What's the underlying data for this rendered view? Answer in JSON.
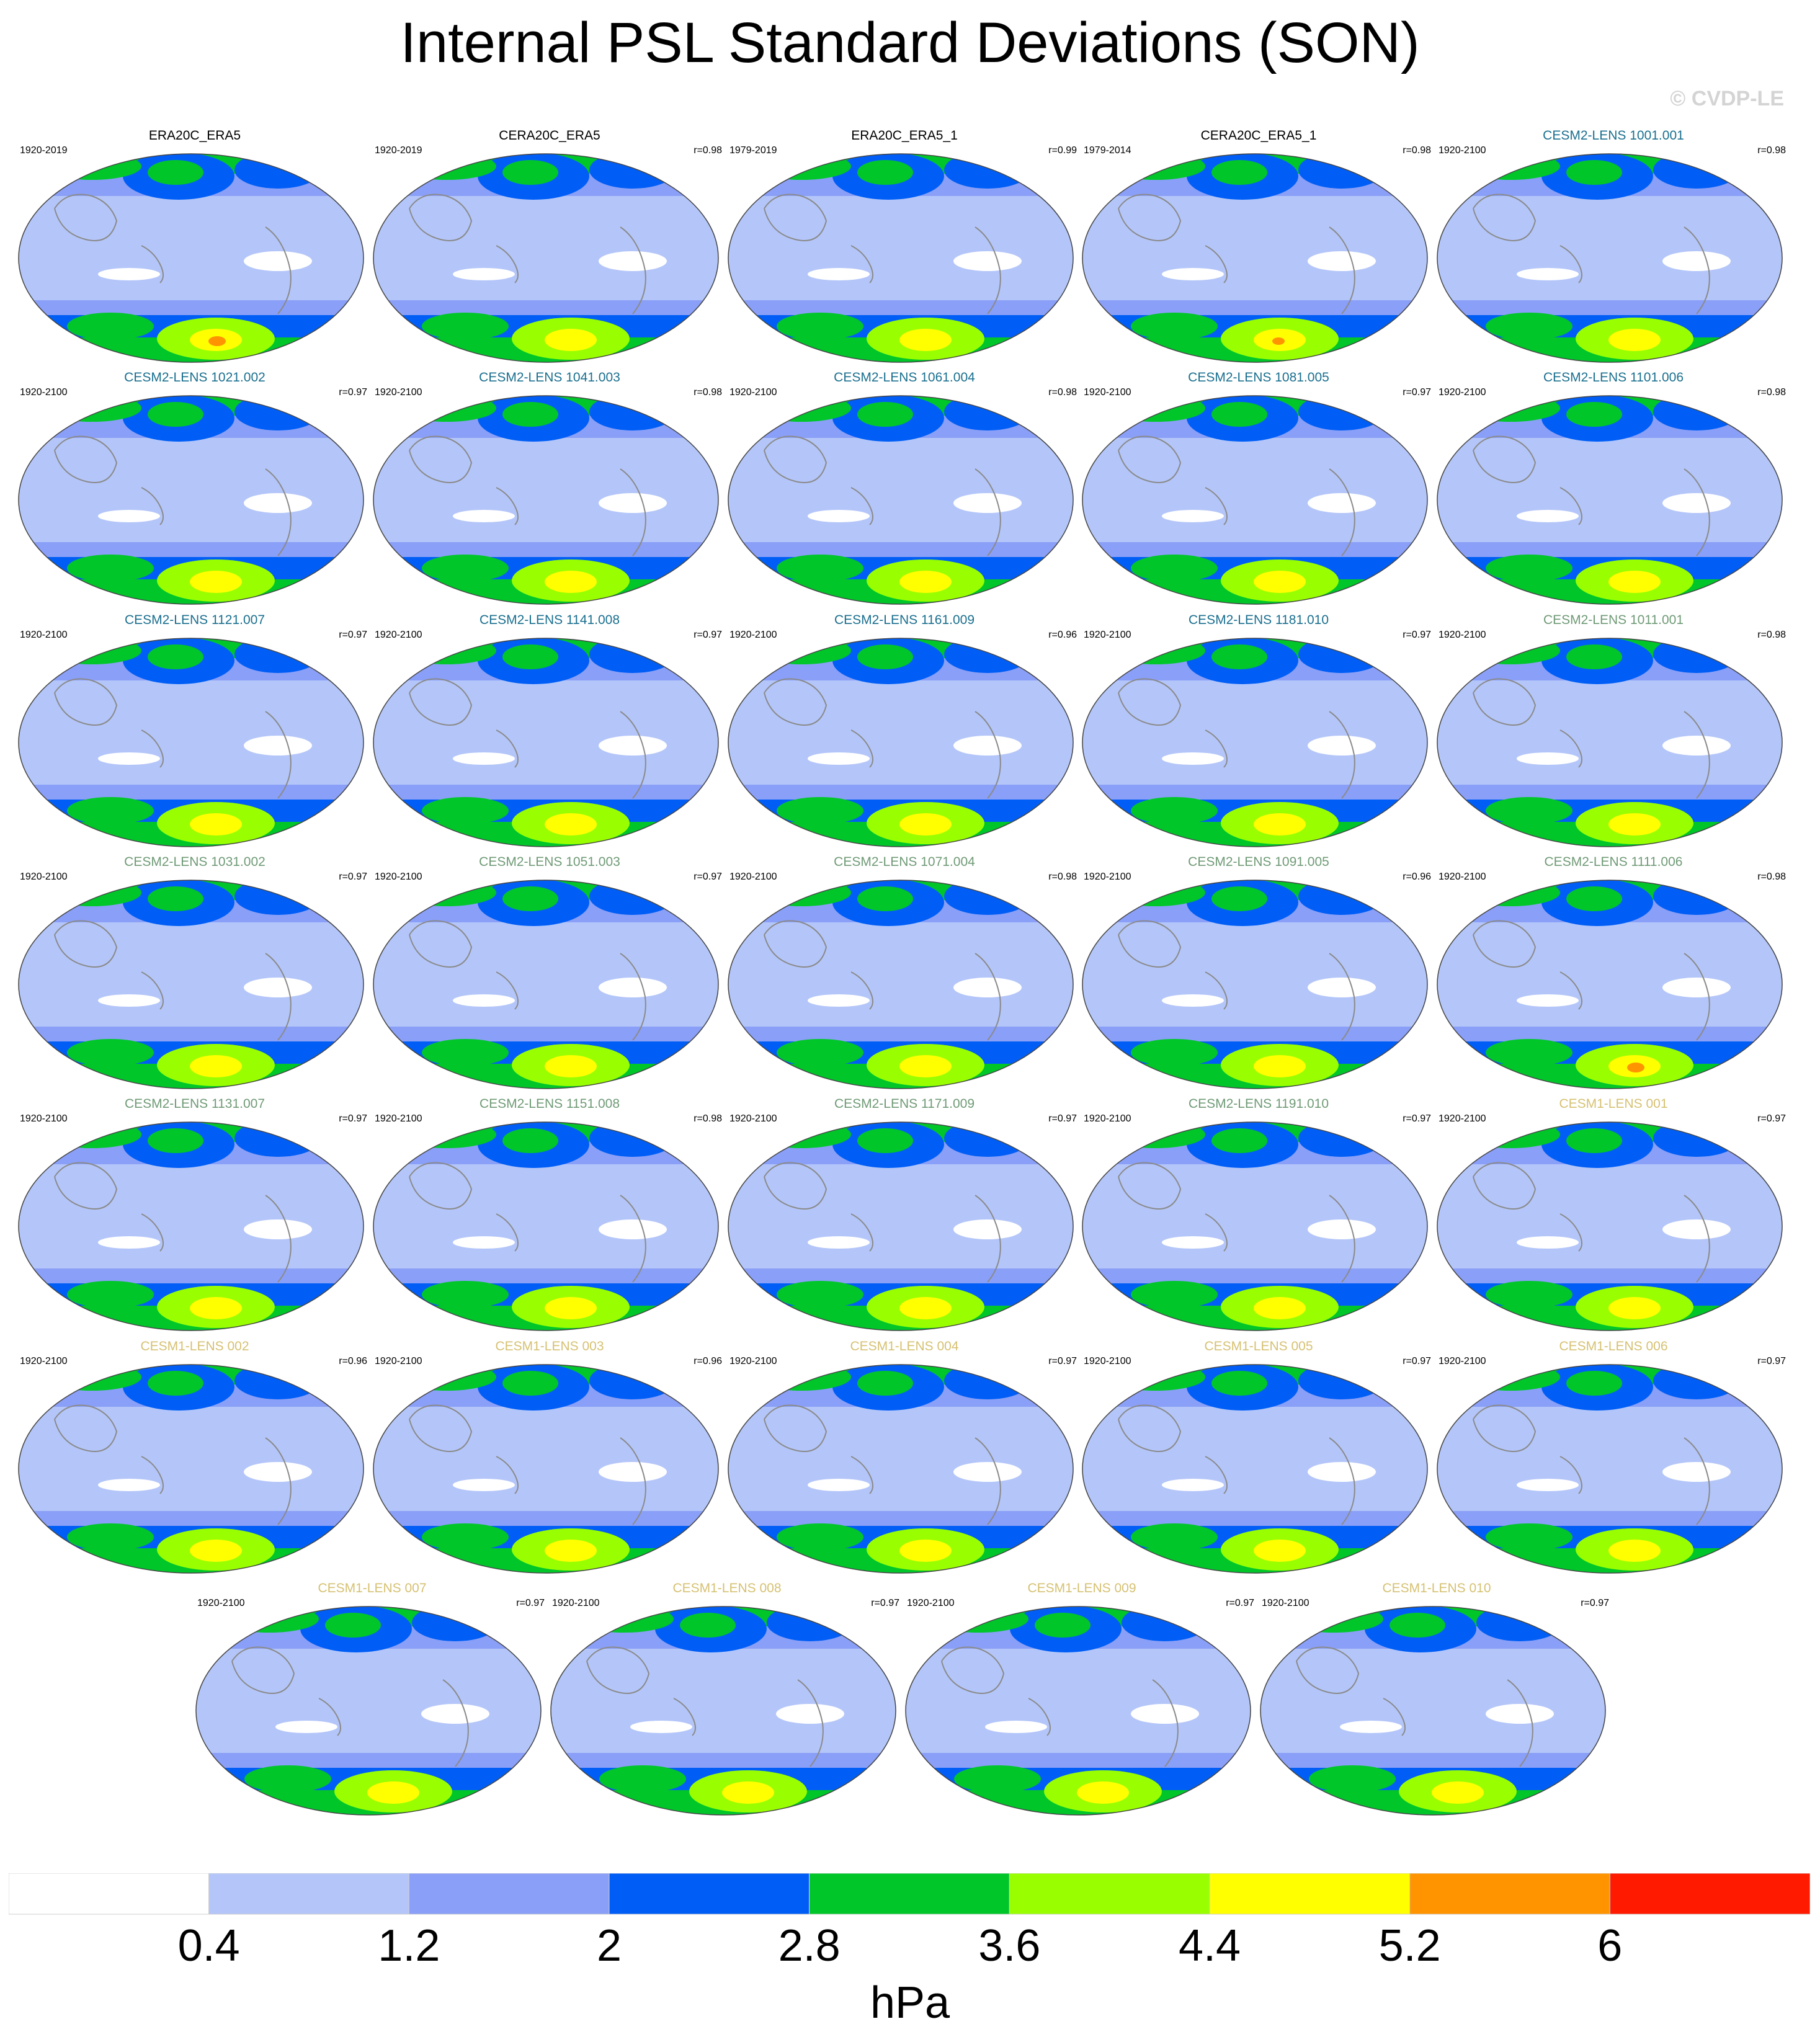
{
  "title": "Internal PSL Standard Deviations (SON)",
  "watermark": "© CVDP-LE",
  "chart_data": {
    "type": "heatmap",
    "units": "hPa",
    "colorbar": {
      "levels": [
        0.4,
        1.2,
        2,
        2.8,
        3.6,
        4.4,
        5.2,
        6
      ],
      "tick_labels": [
        "0.4",
        "1.2",
        "2",
        "2.8",
        "3.6",
        "4.4",
        "5.2",
        "6"
      ],
      "colors": [
        "#ffffff",
        "#b4c6f9",
        "#8a9ff7",
        "#005ef6",
        "#00c62a",
        "#99ff00",
        "#ffff00",
        "#ff9400",
        "#ff1a00"
      ]
    },
    "panels": [
      {
        "name": "ERA20C_ERA5",
        "period": "1920-2019",
        "r": "",
        "title_color": "#000000"
      },
      {
        "name": "CERA20C_ERA5",
        "period": "1920-2019",
        "r": "r=0.98",
        "title_color": "#000000"
      },
      {
        "name": "ERA20C_ERA5_1",
        "period": "1979-2019",
        "r": "r=0.99",
        "title_color": "#000000"
      },
      {
        "name": "CERA20C_ERA5_1",
        "period": "1979-2014",
        "r": "r=0.98",
        "title_color": "#000000"
      },
      {
        "name": "CESM2-LENS 1001.001",
        "period": "1920-2100",
        "r": "r=0.98",
        "title_color": "#1a6f8f"
      },
      {
        "name": "CESM2-LENS 1021.002",
        "period": "1920-2100",
        "r": "r=0.97",
        "title_color": "#1a6f8f"
      },
      {
        "name": "CESM2-LENS 1041.003",
        "period": "1920-2100",
        "r": "r=0.98",
        "title_color": "#1a6f8f"
      },
      {
        "name": "CESM2-LENS 1061.004",
        "period": "1920-2100",
        "r": "r=0.98",
        "title_color": "#1a6f8f"
      },
      {
        "name": "CESM2-LENS 1081.005",
        "period": "1920-2100",
        "r": "r=0.97",
        "title_color": "#1a6f8f"
      },
      {
        "name": "CESM2-LENS 1101.006",
        "period": "1920-2100",
        "r": "r=0.98",
        "title_color": "#1a6f8f"
      },
      {
        "name": "CESM2-LENS 1121.007",
        "period": "1920-2100",
        "r": "r=0.97",
        "title_color": "#1a6f8f"
      },
      {
        "name": "CESM2-LENS 1141.008",
        "period": "1920-2100",
        "r": "r=0.97",
        "title_color": "#1a6f8f"
      },
      {
        "name": "CESM2-LENS 1161.009",
        "period": "1920-2100",
        "r": "r=0.96",
        "title_color": "#1a6f8f"
      },
      {
        "name": "CESM2-LENS 1181.010",
        "period": "1920-2100",
        "r": "r=0.97",
        "title_color": "#1a6f8f"
      },
      {
        "name": "CESM2-LENS 1011.001",
        "period": "1920-2100",
        "r": "r=0.98",
        "title_color": "#6f9a76"
      },
      {
        "name": "CESM2-LENS 1031.002",
        "period": "1920-2100",
        "r": "r=0.97",
        "title_color": "#6f9a76"
      },
      {
        "name": "CESM2-LENS 1051.003",
        "period": "1920-2100",
        "r": "r=0.97",
        "title_color": "#6f9a76"
      },
      {
        "name": "CESM2-LENS 1071.004",
        "period": "1920-2100",
        "r": "r=0.98",
        "title_color": "#6f9a76"
      },
      {
        "name": "CESM2-LENS 1091.005",
        "period": "1920-2100",
        "r": "r=0.96",
        "title_color": "#6f9a76"
      },
      {
        "name": "CESM2-LENS 1111.006",
        "period": "1920-2100",
        "r": "r=0.98",
        "title_color": "#6f9a76"
      },
      {
        "name": "CESM2-LENS 1131.007",
        "period": "1920-2100",
        "r": "r=0.97",
        "title_color": "#6f9a76"
      },
      {
        "name": "CESM2-LENS 1151.008",
        "period": "1920-2100",
        "r": "r=0.98",
        "title_color": "#6f9a76"
      },
      {
        "name": "CESM2-LENS 1171.009",
        "period": "1920-2100",
        "r": "r=0.97",
        "title_color": "#6f9a76"
      },
      {
        "name": "CESM2-LENS 1191.010",
        "period": "1920-2100",
        "r": "r=0.97",
        "title_color": "#6f9a76"
      },
      {
        "name": "CESM1-LENS 001",
        "period": "1920-2100",
        "r": "r=0.97",
        "title_color": "#d6c172"
      },
      {
        "name": "CESM1-LENS 002",
        "period": "1920-2100",
        "r": "r=0.96",
        "title_color": "#d6c172"
      },
      {
        "name": "CESM1-LENS 003",
        "period": "1920-2100",
        "r": "r=0.96",
        "title_color": "#d6c172"
      },
      {
        "name": "CESM1-LENS 004",
        "period": "1920-2100",
        "r": "r=0.97",
        "title_color": "#d6c172"
      },
      {
        "name": "CESM1-LENS 005",
        "period": "1920-2100",
        "r": "r=0.97",
        "title_color": "#d6c172"
      },
      {
        "name": "CESM1-LENS 006",
        "period": "1920-2100",
        "r": "r=0.97",
        "title_color": "#d6c172"
      },
      {
        "name": "CESM1-LENS 007",
        "period": "1920-2100",
        "r": "r=0.97",
        "title_color": "#d6c172"
      },
      {
        "name": "CESM1-LENS 008",
        "period": "1920-2100",
        "r": "r=0.97",
        "title_color": "#d6c172"
      },
      {
        "name": "CESM1-LENS 009",
        "period": "1920-2100",
        "r": "r=0.97",
        "title_color": "#d6c172"
      },
      {
        "name": "CESM1-LENS 010",
        "period": "1920-2100",
        "r": "r=0.97",
        "title_color": "#d6c172"
      }
    ]
  }
}
